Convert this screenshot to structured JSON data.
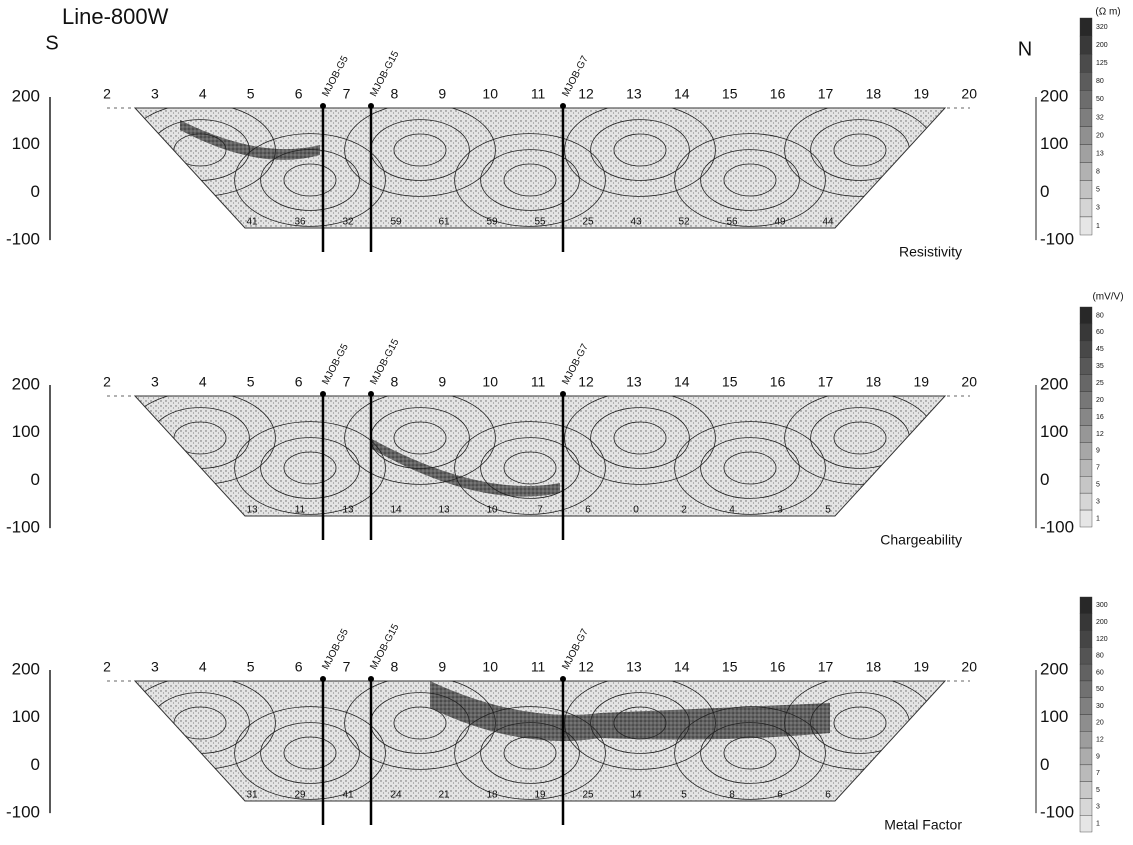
{
  "title": "Line-800W",
  "south": "S",
  "north": "N",
  "stations": [
    "2",
    "3",
    "4",
    "5",
    "6",
    "7",
    "8",
    "9",
    "10",
    "11",
    "12",
    "13",
    "14",
    "15",
    "16",
    "17",
    "18",
    "19",
    "20"
  ],
  "depth_ticks": [
    "200",
    "100",
    "0",
    "-100"
  ],
  "wells": [
    "MJOB-G5",
    "MJOB-G15",
    "MJOB-G7"
  ],
  "panels": [
    {
      "name": "Resistivity",
      "unit": "(Ω m)",
      "scale": [
        "320",
        "200",
        "125",
        "80",
        "50",
        "32",
        "20",
        "13",
        "8",
        "5",
        "3",
        "1"
      ],
      "contours": [
        "41",
        "36",
        "32",
        "59",
        "61",
        "59",
        "55",
        "25",
        "43",
        "52",
        "56",
        "49",
        "44"
      ]
    },
    {
      "name": "Chargeability",
      "unit": "(mV/V)",
      "scale": [
        "80",
        "60",
        "45",
        "35",
        "25",
        "20",
        "16",
        "12",
        "9",
        "7",
        "5",
        "3",
        "1"
      ],
      "contours": [
        "13",
        "11",
        "13",
        "14",
        "13",
        "10",
        "7",
        "6",
        "0",
        "2",
        "4",
        "3",
        "5"
      ]
    },
    {
      "name": "Metal Factor",
      "scale": [
        "300",
        "200",
        "120",
        "80",
        "60",
        "50",
        "30",
        "20",
        "12",
        "9",
        "7",
        "5",
        "3",
        "1"
      ],
      "contours": [
        "31",
        "29",
        "41",
        "24",
        "21",
        "18",
        "19",
        "25",
        "14",
        "5",
        "8",
        "6",
        "6"
      ]
    }
  ]
}
